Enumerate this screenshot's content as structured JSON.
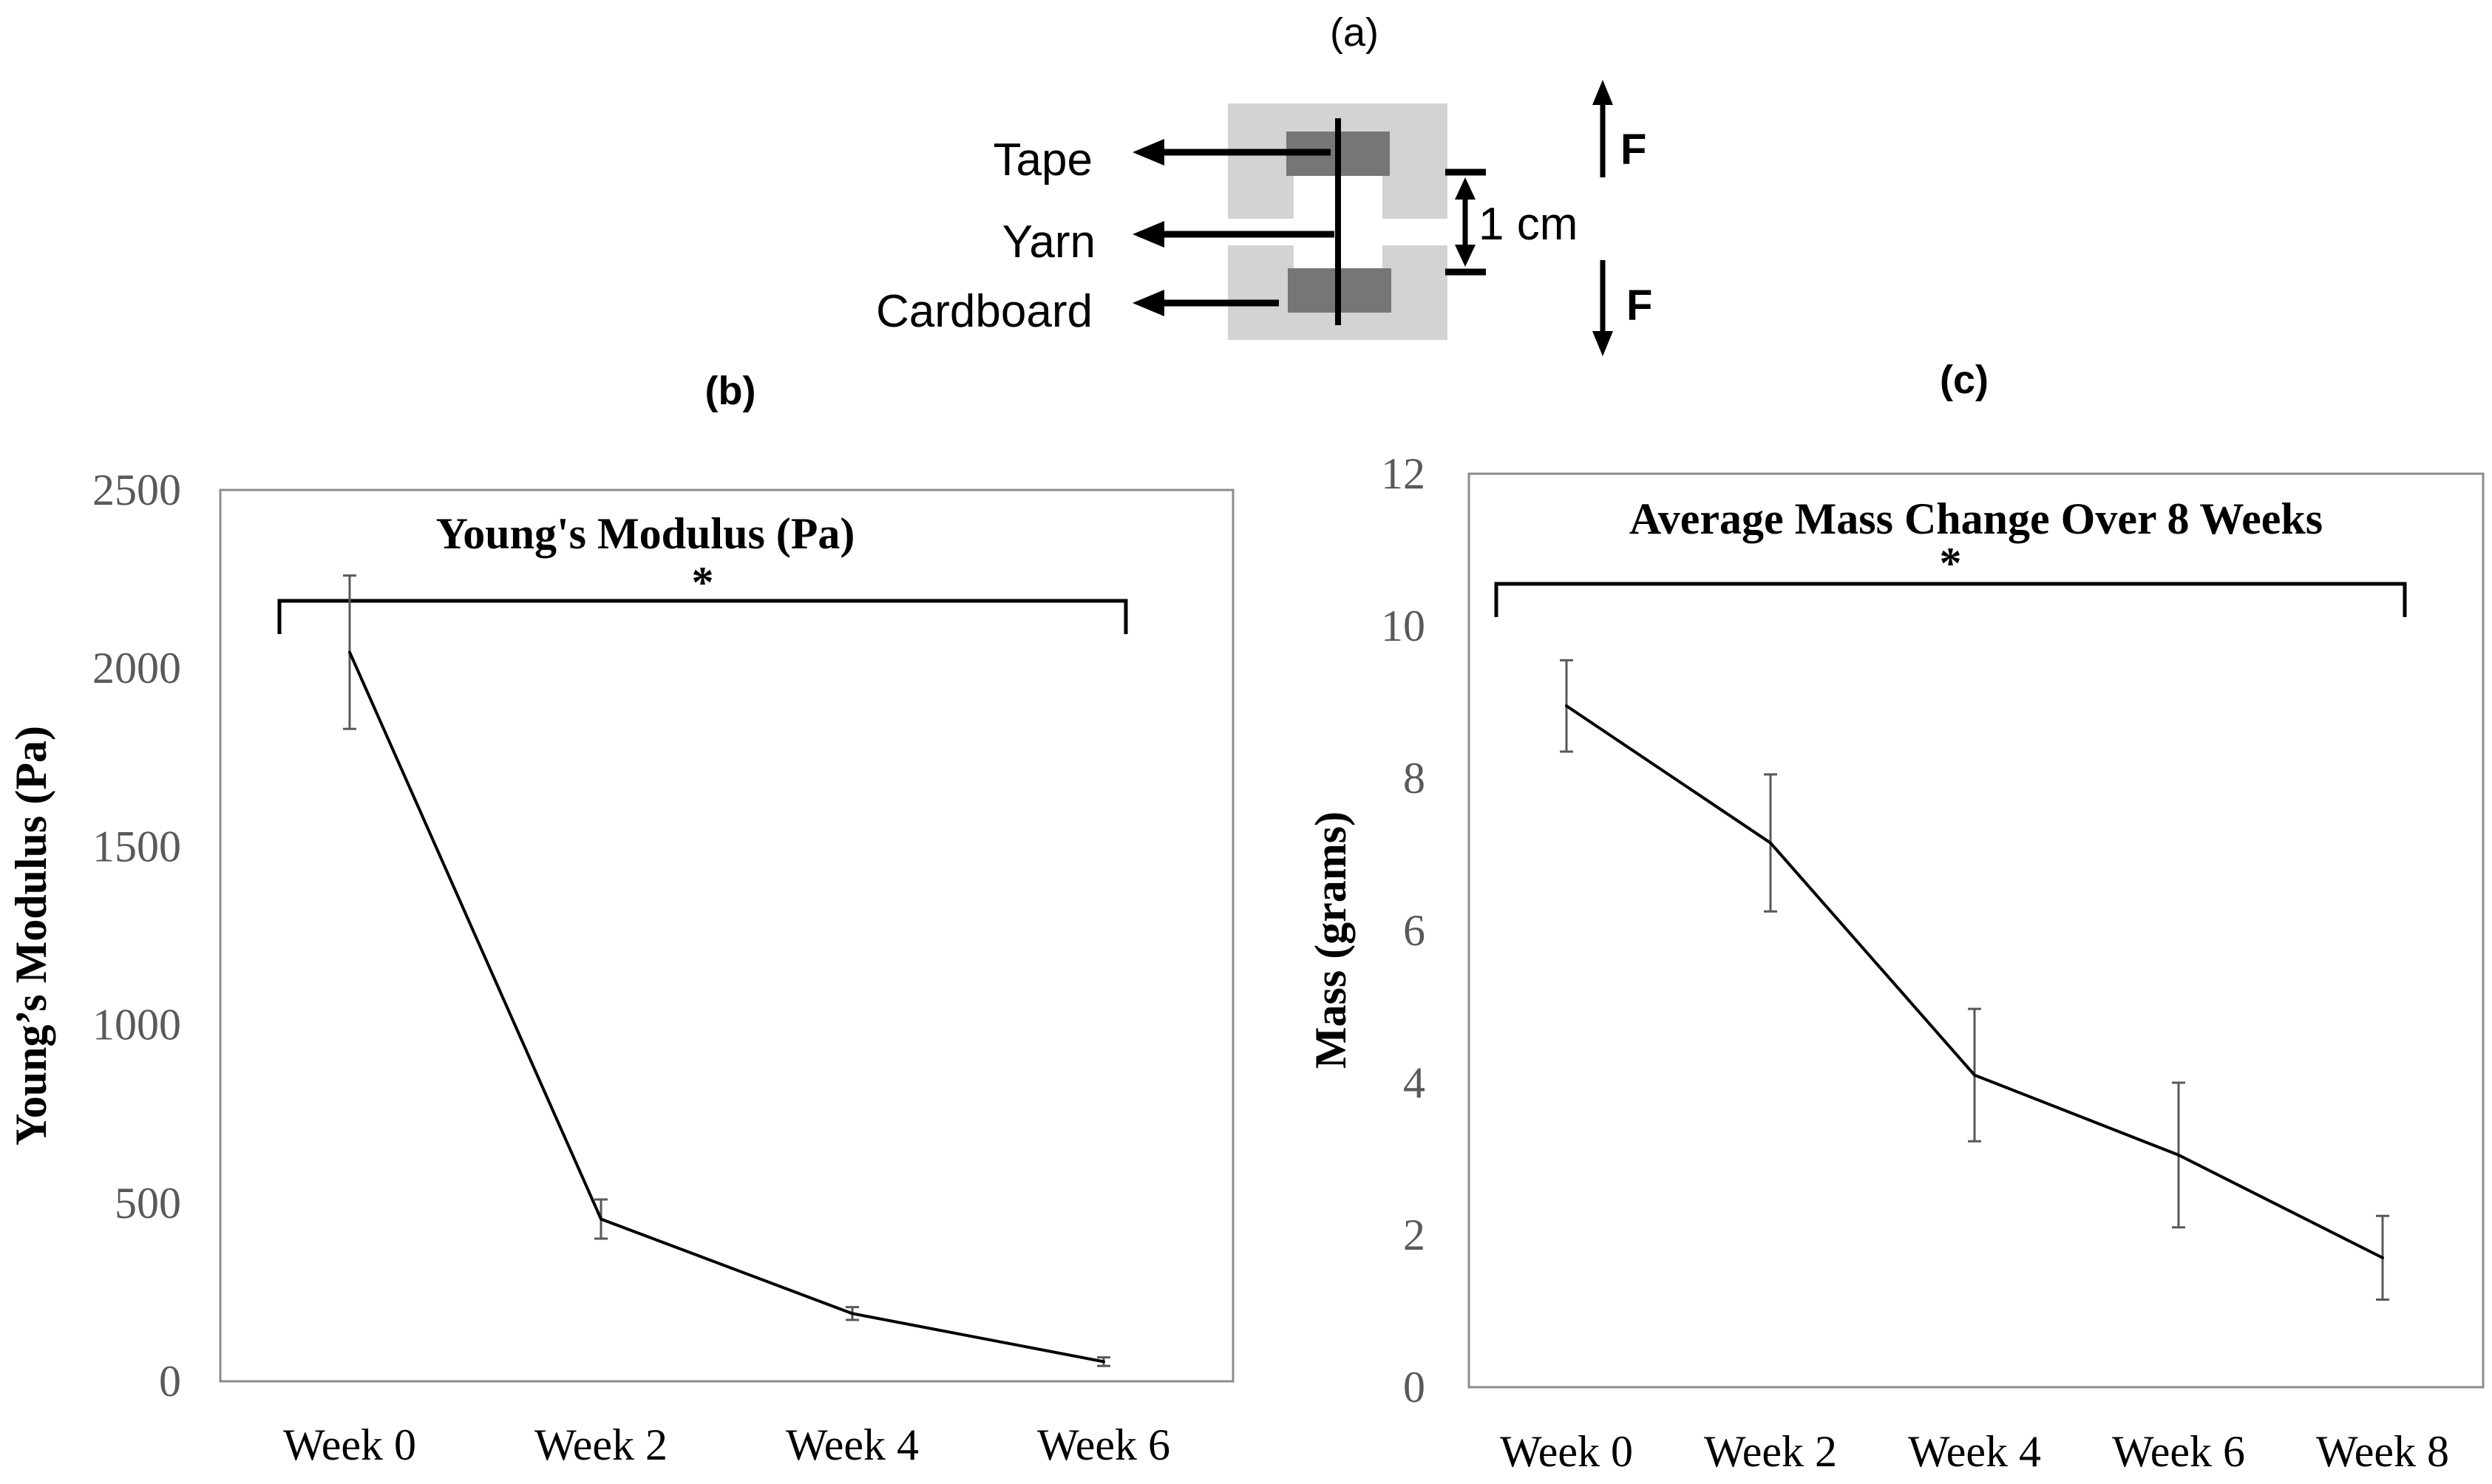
{
  "diagram": {
    "panel_label": "(a)",
    "labels": {
      "tape": "Tape",
      "yarn": "Yarn",
      "cardboard": "Cardboard"
    },
    "gap_label": "1 cm",
    "force_top": "F",
    "force_bottom": "F"
  },
  "chart_data": [
    {
      "panel_label": "(b)",
      "type": "line",
      "title": "Young's Modulus (Pa)",
      "xlabel": "",
      "ylabel": "Young’s Modulus (Pa)",
      "categories": [
        "Week 0",
        "Week 2",
        "Week 4",
        "Week 6"
      ],
      "series": [
        {
          "name": "Young's Modulus",
          "values": [
            2045,
            455,
            190,
            55
          ],
          "error": [
            215,
            55,
            18,
            12
          ]
        }
      ],
      "ylim": [
        0,
        2500
      ],
      "yticks": [
        0,
        500,
        1000,
        1500,
        2000,
        2500
      ],
      "ytick_labels": [
        "0",
        "500",
        "1000",
        "1500",
        "2000",
        "2500"
      ],
      "significance": {
        "from": "Week 0",
        "to": "Week 6",
        "label": "*"
      },
      "grid": false
    },
    {
      "panel_label": "(c)",
      "type": "line",
      "title": "Average Mass Change Over 8 Weeks",
      "xlabel": "",
      "ylabel": "Mass (grams)",
      "categories": [
        "Week 0",
        "Week 2",
        "Week 4",
        "Week 6",
        "Week 8"
      ],
      "series": [
        {
          "name": "Mass",
          "values": [
            8.95,
            7.15,
            4.1,
            3.05,
            1.7
          ],
          "error": [
            0.6,
            0.9,
            0.87,
            0.95,
            0.55
          ]
        }
      ],
      "ylim": [
        0,
        12
      ],
      "yticks": [
        0,
        2,
        4,
        6,
        8,
        10,
        12
      ],
      "ytick_labels": [
        "0",
        "2",
        "4",
        "6",
        "8",
        "10",
        "12"
      ],
      "significance": {
        "from": "Week 0",
        "to": "Week 8",
        "label": "*"
      },
      "grid": false
    }
  ]
}
